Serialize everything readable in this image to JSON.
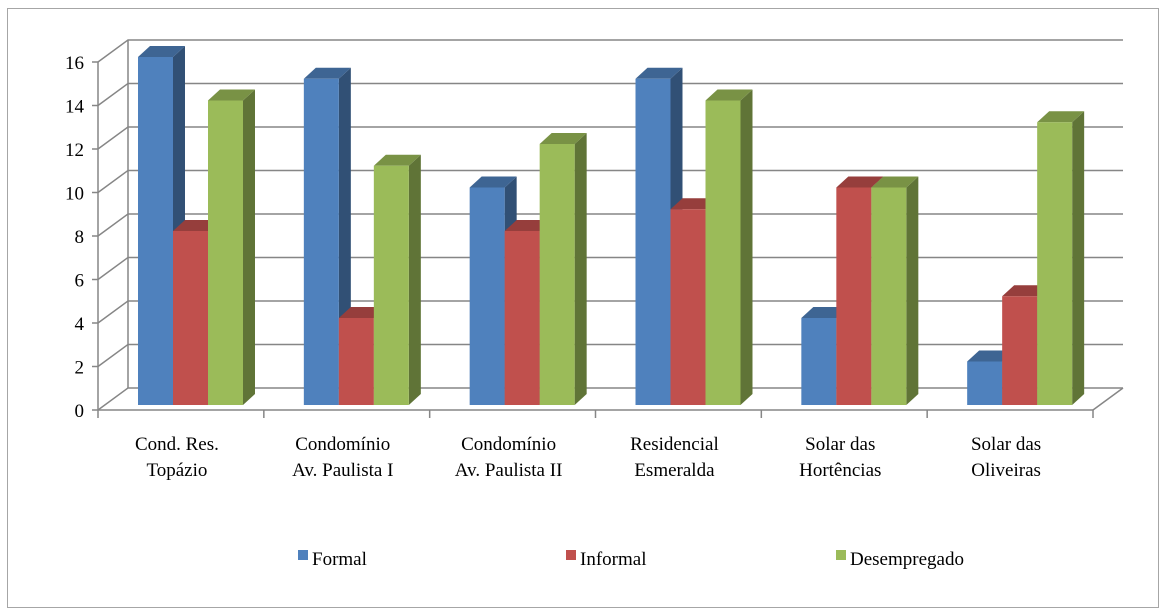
{
  "chart_data": {
    "type": "bar",
    "style": "3d-clustered-column",
    "categories": [
      [
        "Cond. Res.",
        "Topázio"
      ],
      [
        "Condomínio",
        "Av. Paulista I"
      ],
      [
        "Condomínio",
        "Av. Paulista II"
      ],
      [
        "Residencial",
        "Esmeralda"
      ],
      [
        "Solar das",
        "Hortências"
      ],
      [
        "Solar das",
        "Oliveiras"
      ]
    ],
    "series": [
      {
        "name": "Formal",
        "values": [
          16,
          15,
          10,
          15,
          4,
          2
        ],
        "color": "#4f81bd"
      },
      {
        "name": "Informal",
        "values": [
          8,
          4,
          8,
          9,
          10,
          5
        ],
        "color": "#c0504d"
      },
      {
        "name": "Desempregado",
        "values": [
          14,
          11,
          12,
          14,
          10,
          13
        ],
        "color": "#9bbb59"
      }
    ],
    "yticks": [
      "0",
      "2",
      "4",
      "6",
      "8",
      "10",
      "12",
      "14",
      "16"
    ],
    "ylim": [
      0,
      16
    ],
    "grid": true,
    "legend": "bottom"
  }
}
